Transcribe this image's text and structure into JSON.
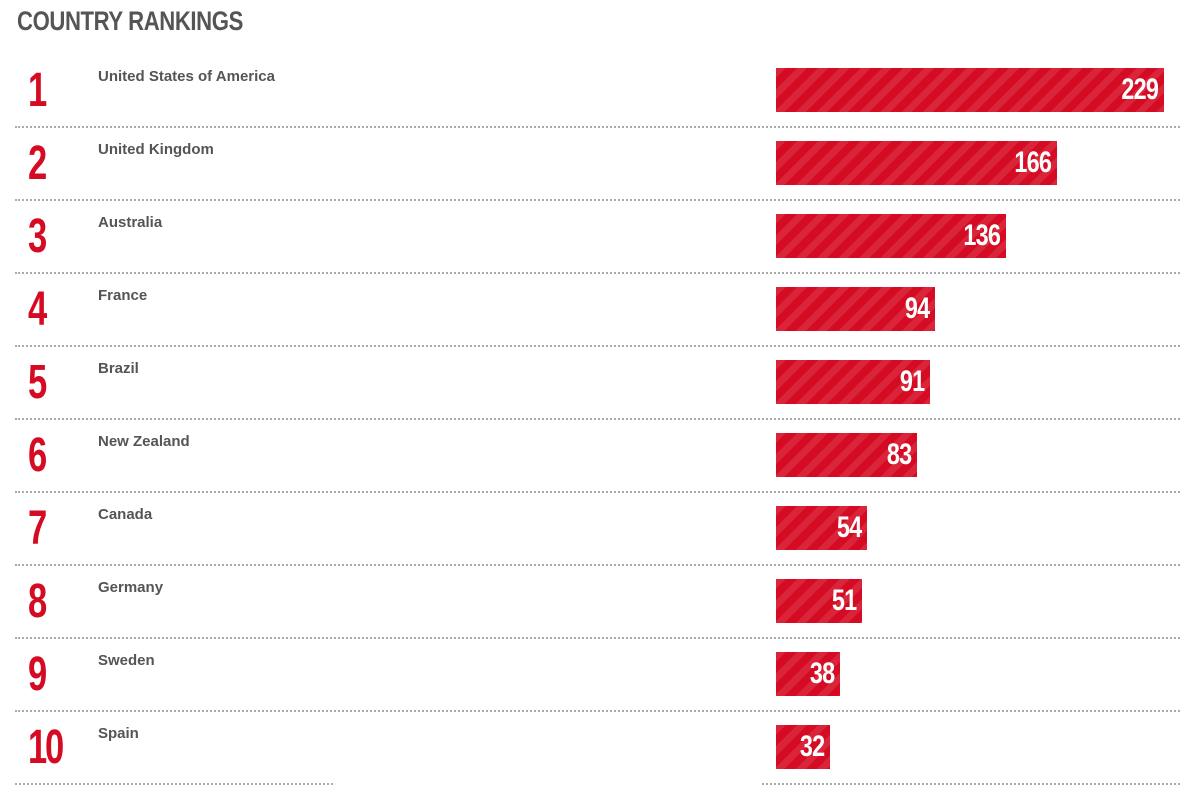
{
  "chart_data": {
    "type": "bar",
    "orientation": "horizontal",
    "title": "COUNTRY RANKINGS",
    "ranks": [
      "1",
      "2",
      "3",
      "4",
      "5",
      "6",
      "7",
      "8",
      "9",
      "10"
    ],
    "categories": [
      "United States of America",
      "United Kingdom",
      "Australia",
      "France",
      "Brazil",
      "New Zealand",
      "Canada",
      "Germany",
      "Sweden",
      "Spain"
    ],
    "values": [
      229,
      166,
      136,
      94,
      91,
      83,
      54,
      51,
      38,
      32
    ],
    "xlim": [
      0,
      229
    ],
    "grid": false,
    "legend": "none",
    "colors": {
      "bar": "#d50b24",
      "rank": "#d50b24",
      "label": "#555555",
      "value": "#ffffff"
    }
  }
}
